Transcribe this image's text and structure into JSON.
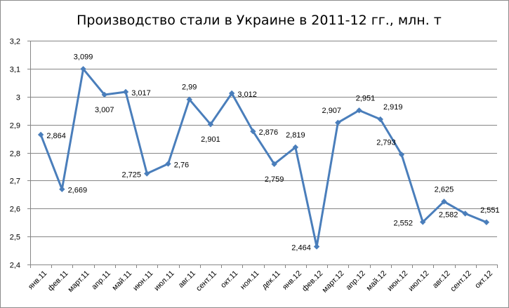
{
  "chart_data": {
    "type": "line",
    "title": "Производство стали в Украине в 2011-12 гг., млн. т",
    "xlabel": "",
    "ylabel": "",
    "ylim": [
      2.4,
      3.2
    ],
    "y_ticks": [
      "2,4",
      "2,5",
      "2,6",
      "2,7",
      "2,8",
      "2,9",
      "3",
      "3,1",
      "3,2"
    ],
    "grid": true,
    "legend": "none",
    "categories": [
      "янв.11",
      "фев.11",
      "март.11",
      "апр.11",
      "май.11",
      "июн.11",
      "июл.11",
      "авг.11",
      "сент.11",
      "окт.11",
      "ноя.11",
      "дек.11",
      "янв.12",
      "фев.12",
      "март.12",
      "апр.12",
      "май.12",
      "июн.12",
      "июл.12",
      "авг.12",
      "сент.12",
      "окт.12"
    ],
    "series": [
      {
        "values": [
          2.864,
          2.669,
          3.099,
          3.007,
          3.017,
          2.725,
          2.76,
          2.99,
          2.901,
          3.012,
          2.876,
          2.759,
          2.819,
          2.464,
          2.907,
          2.951,
          2.919,
          2.793,
          2.552,
          2.625,
          2.582,
          2.551
        ],
        "data_labels": [
          "2,864",
          "2,669",
          "3,099",
          "3,007",
          "3,017",
          "2,725",
          "2,76",
          "2,99",
          "2,901",
          "3,012",
          "2,876",
          "2,759",
          "2,819",
          "2,464",
          "2,907",
          "2,951",
          "2,919",
          "2,793",
          "2,552",
          "2,625",
          "2,582",
          "2,551"
        ],
        "color": "#4a7ebb"
      }
    ]
  }
}
